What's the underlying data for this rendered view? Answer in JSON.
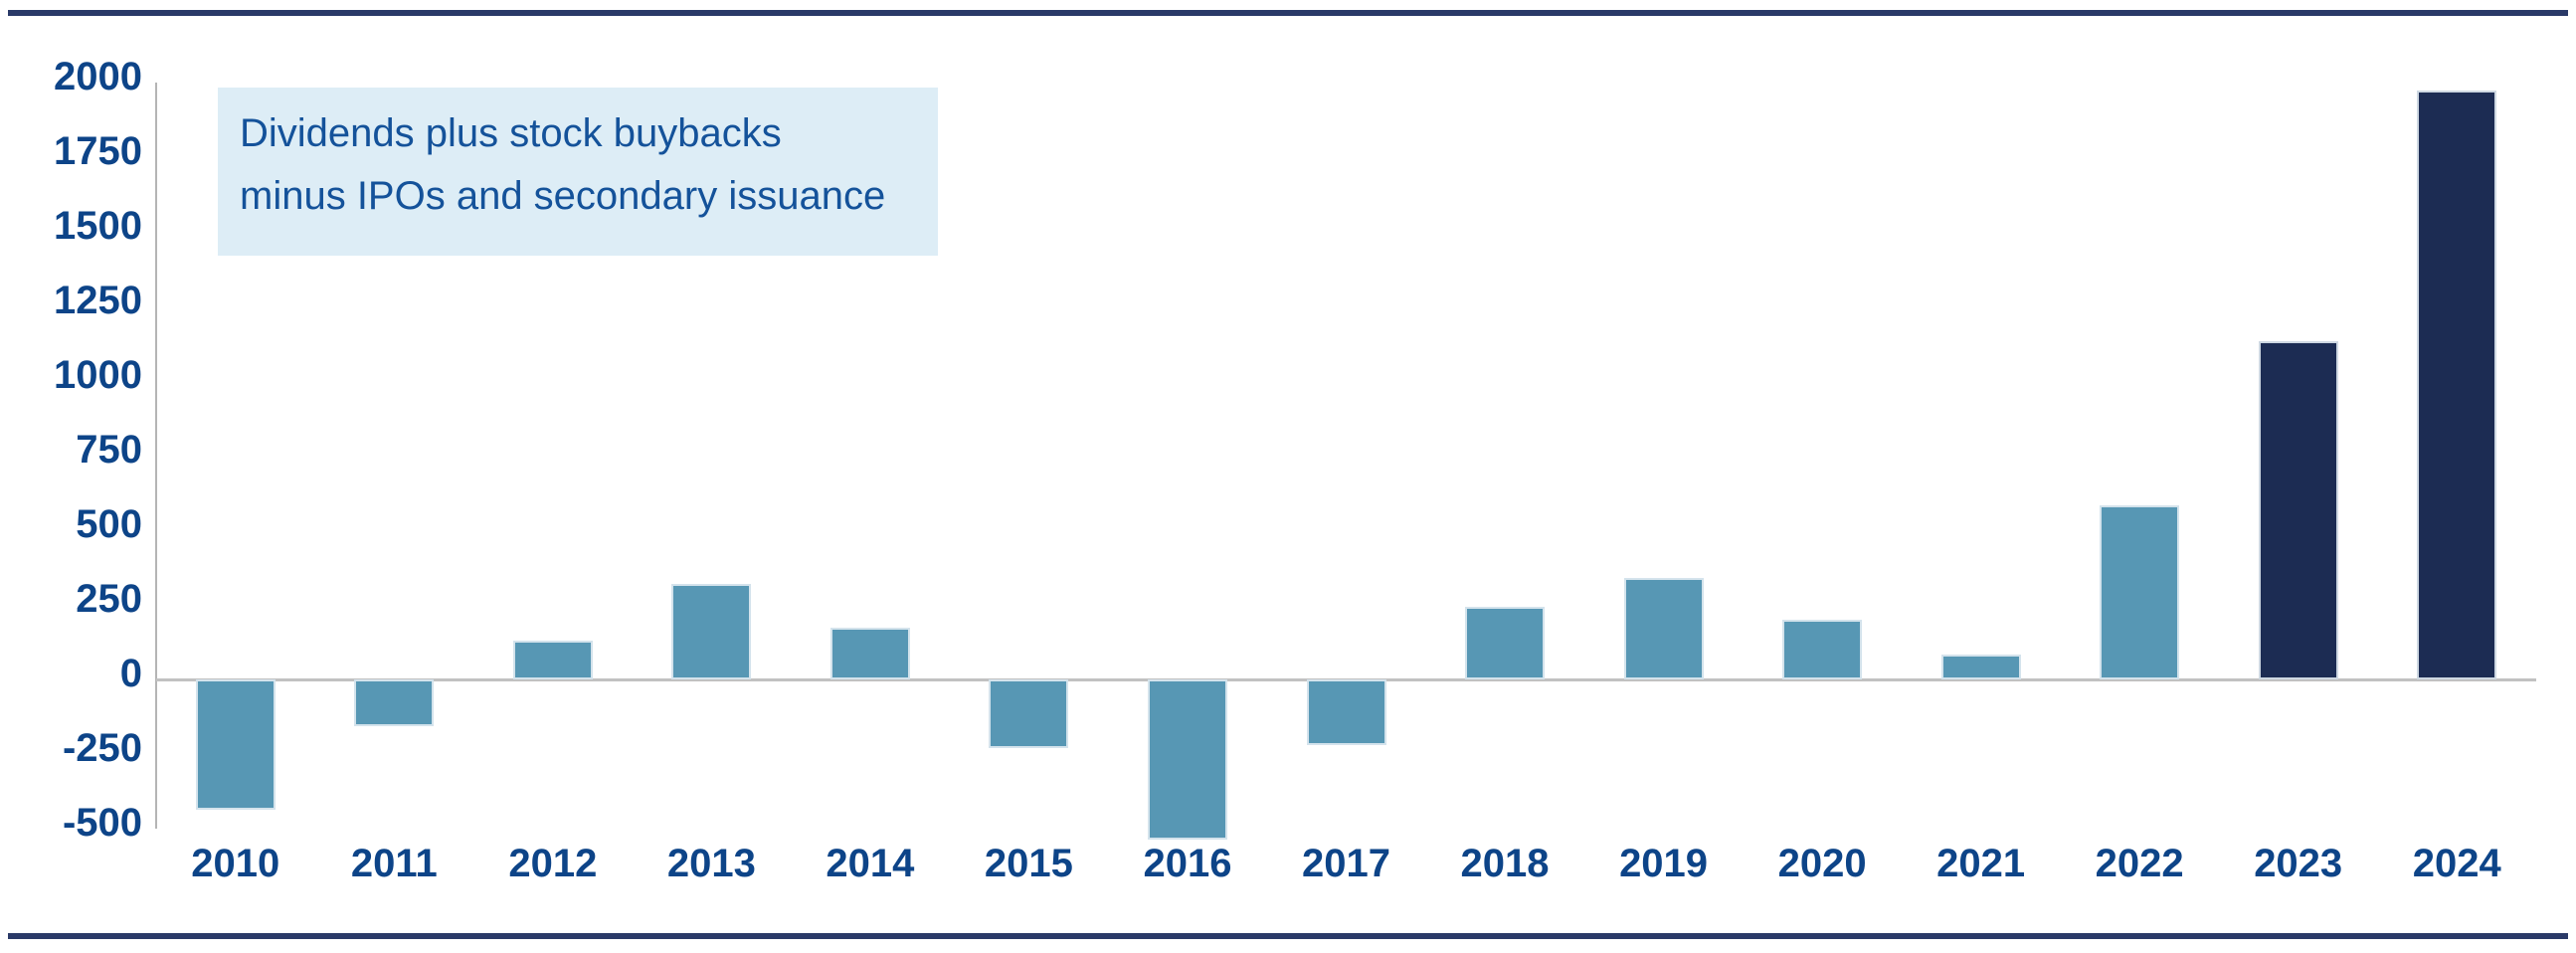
{
  "page": {
    "background": "#ffffff",
    "top_rule_color": "#2a3a68",
    "bottom_rule_color": "#2a3a68"
  },
  "annotation": {
    "line1": "Dividends plus stock buybacks",
    "line2": "minus IPOs and secondary issuance",
    "bg_color": "#ddedf6",
    "text_color": "#14529a"
  },
  "chart_data": {
    "type": "bar",
    "title": "",
    "annotation_text": "Dividends plus stock buybacks minus IPOs and secondary issuance",
    "categories": [
      "2010",
      "2011",
      "2012",
      "2013",
      "2014",
      "2015",
      "2016",
      "2017",
      "2018",
      "2019",
      "2020",
      "2021",
      "2022",
      "2023",
      "2024"
    ],
    "values": [
      -435,
      -155,
      130,
      320,
      175,
      -230,
      -535,
      -220,
      245,
      340,
      200,
      85,
      585,
      1135,
      1975
    ],
    "xlabel": "",
    "ylabel": "",
    "ylim": [
      -560,
      2000
    ],
    "ytick_step": 250,
    "yticks": [
      2000,
      1750,
      1500,
      1250,
      1000,
      750,
      500,
      250,
      0,
      -250,
      -500
    ],
    "grid": "zero-baseline-only",
    "legend_position": "none",
    "bar_color_default": "#5797b4",
    "bar_color_highlight": "#1c2c53",
    "highlight_categories": [
      "2023",
      "2024"
    ],
    "axis_label_color": "#0d4488",
    "axis_line_color": "#b5b5b5",
    "zero_line_color": "#c1c1c1"
  }
}
